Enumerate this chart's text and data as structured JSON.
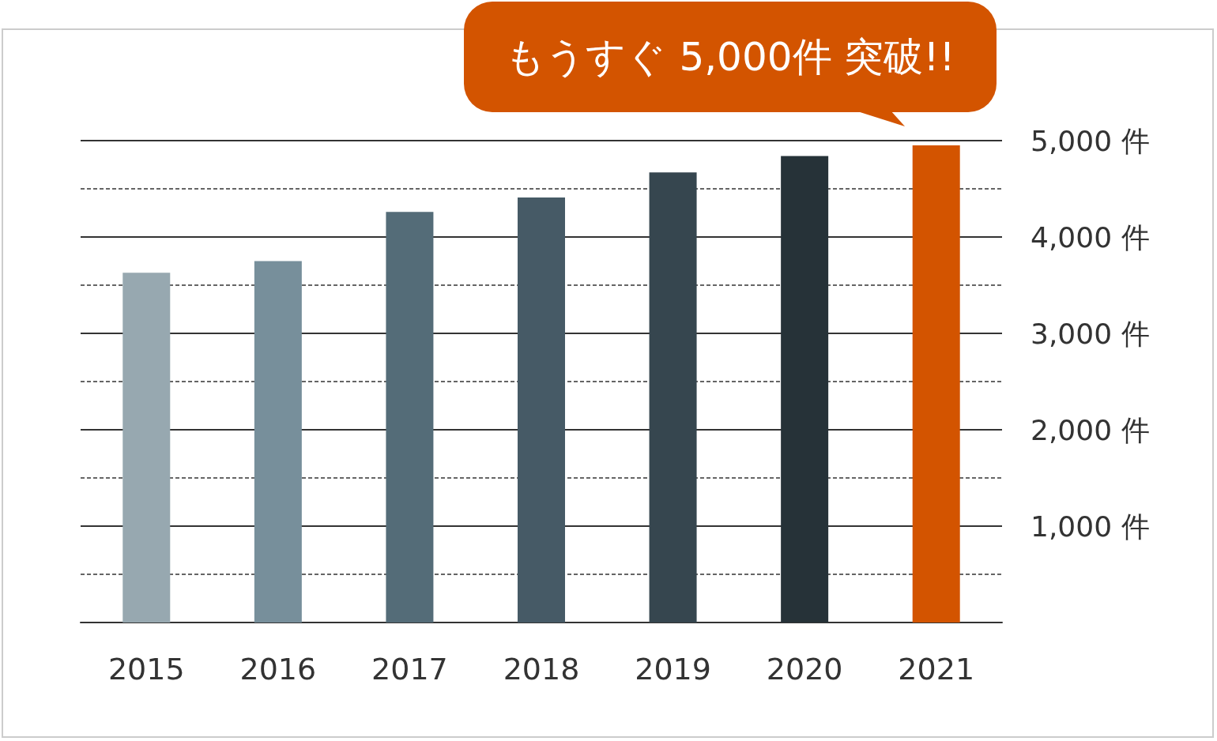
{
  "chart_data": {
    "type": "bar",
    "categories": [
      "2015",
      "2016",
      "2017",
      "2018",
      "2019",
      "2020",
      "2021"
    ],
    "values": [
      3630,
      3750,
      4260,
      4410,
      4670,
      4840,
      4950
    ],
    "colors": [
      "#97a8b0",
      "#778f9b",
      "#546c78",
      "#465a66",
      "#36464f",
      "#263238",
      "#d35400"
    ],
    "ylim": [
      0,
      5000
    ],
    "yticks": [
      {
        "value": 500,
        "label": null
      },
      {
        "value": 1000,
        "label": "1,000 件"
      },
      {
        "value": 1500,
        "label": null
      },
      {
        "value": 2000,
        "label": "2,000 件"
      },
      {
        "value": 2500,
        "label": null
      },
      {
        "value": 3000,
        "label": "3,000 件"
      },
      {
        "value": 3500,
        "label": null
      },
      {
        "value": 4000,
        "label": "4,000 件"
      },
      {
        "value": 4500,
        "label": null
      },
      {
        "value": 5000,
        "label": "5,000 件"
      }
    ],
    "grid": "y",
    "annotations": [
      "もうすぐ 5,000件 突破!!"
    ]
  }
}
